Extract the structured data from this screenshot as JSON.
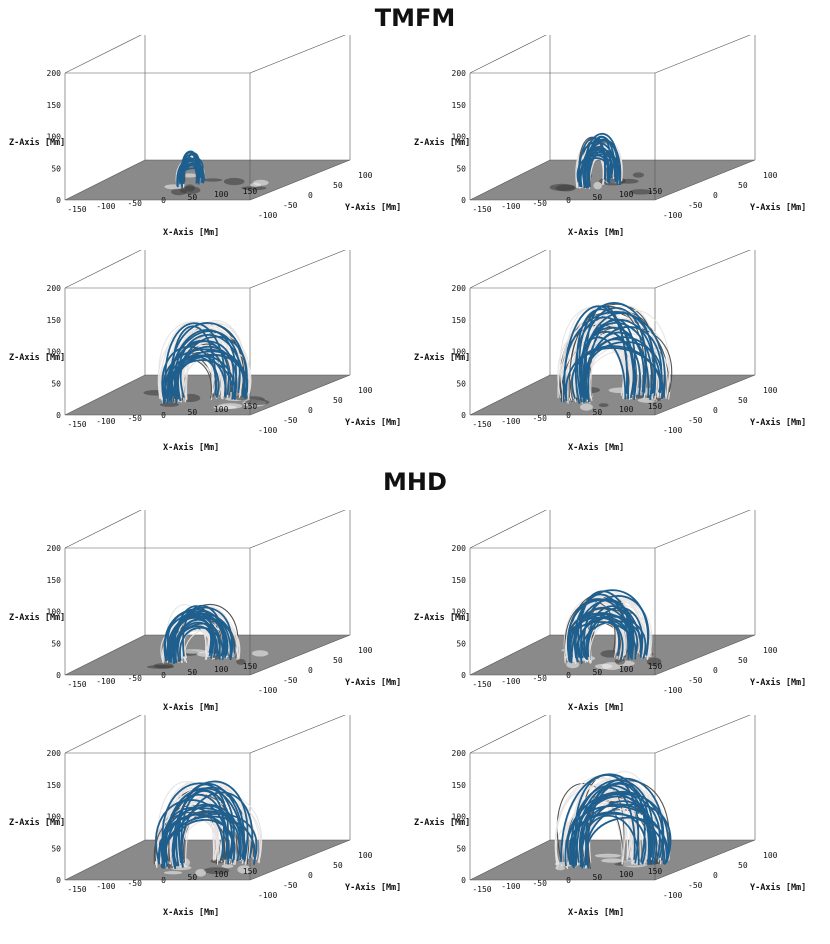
{
  "sections": [
    {
      "title": "TMFM"
    },
    {
      "title": "MHD"
    }
  ],
  "axes": {
    "x_label": "X-Axis [Mm]",
    "y_label": "Y-Axis [Mm]",
    "z_label": "Z-Axis [Mm]",
    "x_ticks": [
      "-150",
      "-100",
      "-50",
      "0",
      "50",
      "100",
      "150"
    ],
    "y_ticks": [
      "100",
      "50",
      "0",
      "-50",
      "-100"
    ],
    "z_ticks": [
      "200",
      "150",
      "100",
      "50",
      "0"
    ]
  },
  "colors": {
    "field_line_blue": "#1f5f8e",
    "field_line_white": "#e8e4e4",
    "field_line_dark": "#4a4a4a",
    "floor_gray": "#8a8a8a",
    "box_edge": "#555555"
  },
  "panels": [
    {
      "section": "TMFM",
      "position": "top-left",
      "loop_height": 45,
      "loop_width": 30,
      "white_density": 0.1
    },
    {
      "section": "TMFM",
      "position": "top-right",
      "loop_height": 75,
      "loop_width": 45,
      "white_density": 0.6
    },
    {
      "section": "TMFM",
      "position": "middle-left",
      "loop_height": 120,
      "loop_width": 90,
      "white_density": 0.8
    },
    {
      "section": "TMFM",
      "position": "middle-right",
      "loop_height": 150,
      "loop_width": 110,
      "white_density": 0.9
    },
    {
      "section": "MHD",
      "position": "top-left",
      "loop_height": 85,
      "loop_width": 75,
      "white_density": 0.8
    },
    {
      "section": "MHD",
      "position": "top-right",
      "loop_height": 105,
      "loop_width": 85,
      "white_density": 0.85
    },
    {
      "section": "MHD",
      "position": "bottom-left",
      "loop_height": 130,
      "loop_width": 105,
      "white_density": 0.9
    },
    {
      "section": "MHD",
      "position": "bottom-right",
      "loop_height": 140,
      "loop_width": 115,
      "white_density": 0.9
    }
  ]
}
